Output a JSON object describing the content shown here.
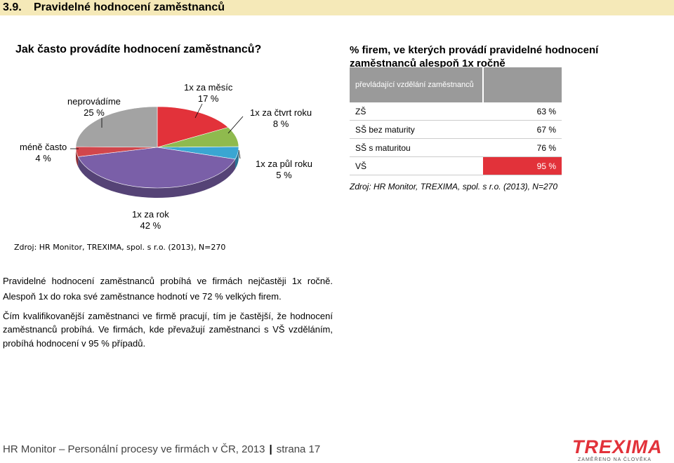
{
  "section": {
    "number": "3.9.",
    "title": "Pravidelné hodnocení zaměstnanců"
  },
  "question_left": "Jak často provádíte hodnocení zaměstnanců?",
  "question_right": "% firem, ve kterých provádí pravidelné hodnocení zaměstnanců alespoň 1x ročně",
  "chart_data": [
    {
      "type": "pie",
      "title": "Jak často provádíte hodnocení zaměstnanců?",
      "slices": [
        {
          "label": "1x za měsíc",
          "value_text": "17 %",
          "value": 17,
          "color": "#e2323a"
        },
        {
          "label": "1x za čtvrt roku",
          "value_text": "8 %",
          "value": 8,
          "color": "#8fba4e"
        },
        {
          "label": "1x za půl roku",
          "value_text": "5 %",
          "value": 5,
          "color": "#3aa6d2"
        },
        {
          "label": "1x za rok",
          "value_text": "42 %",
          "value": 42,
          "color": "#7a5fa8"
        },
        {
          "label": "méně často",
          "value_text": "4 %",
          "value": 4,
          "color": "#d1464c"
        },
        {
          "label": "neprovádíme",
          "value_text": "25 %",
          "value": 25,
          "color": "#a3a3a3"
        }
      ],
      "source": "Zdroj: HR Monitor, TREXIMA, spol. s r.o. (2013), N=270"
    },
    {
      "type": "table",
      "title": "% firem, ve kterých provádí pravidelné hodnocení zaměstnanců alespoň 1x ročně",
      "header": "převládající vzdělání zaměstnanců",
      "rows": [
        {
          "category": "ZŠ",
          "value_text": "63 %",
          "value": 63
        },
        {
          "category": "SŠ bez maturity",
          "value_text": "67 %",
          "value": 67
        },
        {
          "category": "SŠ s maturitou",
          "value_text": "76 %",
          "value": 76
        },
        {
          "category": "VŠ",
          "value_text": "95 %",
          "value": 95,
          "highlight": true
        }
      ],
      "source": "Zdroj: HR Monitor, TREXIMA, spol. s r.o. (2013), N=270"
    }
  ],
  "paragraphs": [
    "Pravidelné hodnocení zaměstnanců probíhá ve firmách nejčastěji 1x ročně.",
    "Alespoň 1x do roka své zaměstnance hodnotí ve 72 % velkých firem.",
    "Čím kvalifikovanější zaměstnanci ve firmě pracují, tím je častější, že hodnocení",
    "zaměstnanců probíhá. Ve firmách, kde převažují zaměstnanci s VŠ vzděláním,",
    "probíhá hodnocení v 95 % případů."
  ],
  "footer": {
    "text": "HR Monitor – Personální procesy ve firmách v ČR, 2013",
    "separator": "|",
    "page": "strana 17"
  },
  "logo": {
    "word": "TREXIMA",
    "tagline": "ZAMĚŘENO NA ČLOVĚKA"
  }
}
